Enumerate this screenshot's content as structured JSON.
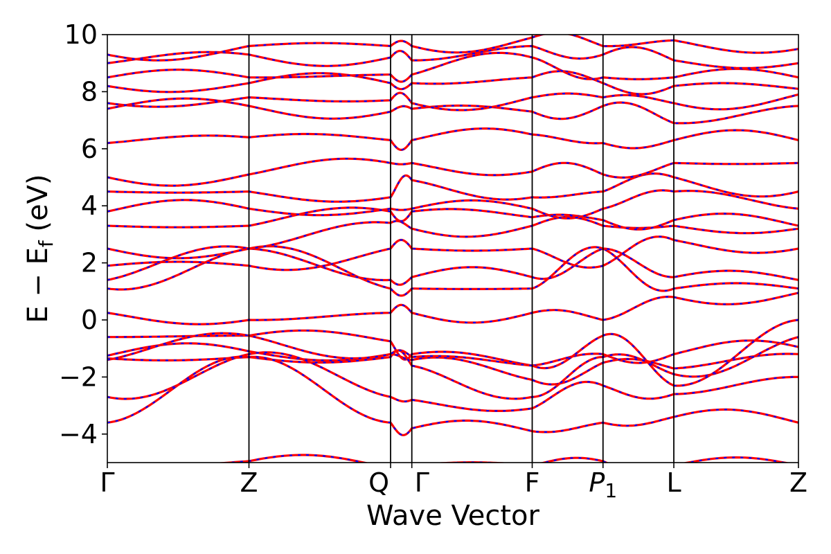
{
  "chart_data": {
    "type": "line",
    "title": "",
    "xlabel": "Wave Vector",
    "ylabel": "E − E_f (eV)",
    "ylabel_parts": {
      "main": "E − E",
      "sub": "f",
      "unit": " (eV)"
    },
    "ylim": [
      -5,
      10
    ],
    "yticks": [
      -4,
      -2,
      0,
      2,
      4,
      6,
      8,
      10
    ],
    "ytick_labels": [
      "−4",
      "−2",
      "0",
      "2",
      "4",
      "6",
      "8",
      "10"
    ],
    "grid": false,
    "legend": "none",
    "x_points": [
      0,
      1.0,
      2.0,
      2.15,
      3.0,
      3.5,
      4.0,
      4.88
    ],
    "x_labels": [
      "Γ",
      "Z",
      "Q",
      "Γ",
      "F",
      "P1",
      "L",
      "Z"
    ],
    "x_label_parts": [
      {
        "main": "Γ",
        "sub": ""
      },
      {
        "main": "Z",
        "sub": ""
      },
      {
        "main": "Q",
        "sub": ""
      },
      {
        "main": "Γ",
        "sub": ""
      },
      {
        "main": "F",
        "sub": ""
      },
      {
        "main": "P",
        "sub": "1"
      },
      {
        "main": "L",
        "sub": ""
      },
      {
        "main": "Z",
        "sub": ""
      }
    ],
    "series_colors": {
      "dft": "#ff0000",
      "model": "#0000ff"
    },
    "bands": [
      [
        -0.6,
        -0.55,
        -0.75,
        -1.2,
        -1.6,
        -1.2,
        -1.2,
        -0.95
      ],
      [
        -1.25,
        -1.1,
        -1.2,
        -1.4,
        -2.1,
        -1.5,
        -1.7,
        -1.2
      ],
      [
        -1.35,
        -1.3,
        -1.3,
        -1.6,
        -2.7,
        -1.3,
        -1.9,
        -0.6
      ],
      [
        -2.7,
        -1.2,
        -2.7,
        -2.8,
        -3.1,
        -2.3,
        -2.6,
        -2.0
      ],
      [
        -3.6,
        -1.3,
        -3.6,
        -3.8,
        -3.9,
        -3.6,
        -3.4,
        -3.6
      ],
      [
        -1.4,
        -0.55,
        -1.2,
        -1.3,
        -1.6,
        -0.55,
        -2.3,
        0.0
      ],
      [
        0.25,
        0.0,
        0.25,
        0.25,
        0.25,
        0.0,
        0.8,
        0.95
      ],
      [
        1.1,
        2.5,
        1.1,
        1.1,
        1.1,
        2.5,
        1.1,
        1.1
      ],
      [
        1.4,
        2.5,
        1.4,
        1.5,
        1.5,
        2.5,
        1.5,
        1.4
      ],
      [
        1.9,
        1.9,
        2.5,
        2.5,
        2.5,
        1.9,
        2.8,
        2.5
      ],
      [
        2.5,
        2.5,
        3.4,
        3.2,
        3.3,
        3.3,
        3.3,
        3.2
      ],
      [
        3.3,
        3.3,
        3.8,
        3.8,
        3.6,
        3.5,
        3.5,
        3.3
      ],
      [
        3.8,
        3.9,
        3.9,
        3.9,
        3.9,
        3.9,
        4.5,
        3.9
      ],
      [
        4.5,
        4.5,
        4.3,
        4.9,
        4.3,
        4.5,
        5.0,
        4.5
      ],
      [
        5.0,
        5.1,
        5.5,
        5.5,
        5.2,
        5.1,
        5.5,
        5.5
      ],
      [
        6.2,
        6.4,
        6.3,
        6.3,
        6.5,
        6.2,
        6.3,
        6.3
      ],
      [
        7.4,
        7.5,
        7.3,
        7.4,
        7.3,
        7.5,
        6.9,
        7.5
      ],
      [
        7.6,
        7.8,
        7.7,
        7.6,
        7.8,
        7.8,
        7.6,
        7.9
      ],
      [
        8.2,
        8.3,
        8.3,
        8.3,
        8.5,
        8.3,
        8.2,
        8.1
      ],
      [
        8.5,
        8.5,
        8.6,
        8.6,
        9.2,
        8.5,
        8.5,
        8.5
      ],
      [
        9.0,
        9.3,
        9.2,
        9.1,
        9.6,
        9.3,
        9.1,
        9.0
      ],
      [
        9.3,
        9.6,
        9.6,
        9.6,
        9.9,
        9.6,
        9.8,
        9.5
      ],
      [
        -5.1,
        -4.95,
        -5.2,
        -5.1,
        -5.1,
        -4.95,
        -5.1,
        -5.1
      ]
    ]
  }
}
